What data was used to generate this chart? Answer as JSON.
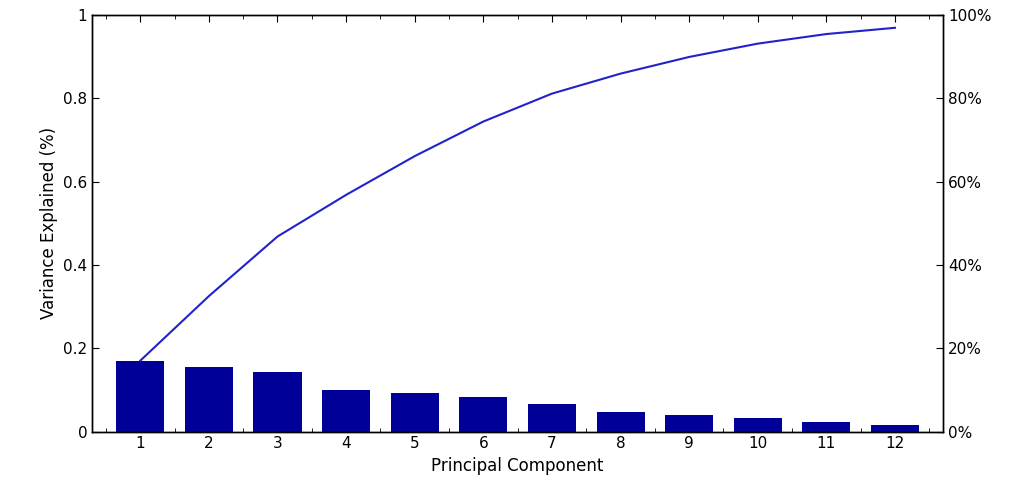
{
  "bar_values": [
    0.17,
    0.155,
    0.143,
    0.1,
    0.093,
    0.083,
    0.067,
    0.048,
    0.04,
    0.032,
    0.023,
    0.015
  ],
  "categories": [
    1,
    2,
    3,
    4,
    5,
    6,
    7,
    8,
    9,
    10,
    11,
    12
  ],
  "bar_color": "#000099",
  "line_color": "#2222CC",
  "xlabel": "Principal Component",
  "ylabel": "Variance Explained (%)",
  "ylim_left": [
    0,
    1
  ],
  "yticks_left": [
    0,
    0.2,
    0.4,
    0.6,
    0.8,
    1.0
  ],
  "yticks_left_labels": [
    "0",
    "0.2",
    "0.4",
    "0.6",
    "0.8",
    "1"
  ],
  "yticks_right_labels": [
    "0%",
    "20%",
    "40%",
    "60%",
    "80%",
    "100%"
  ],
  "background_color": "#ffffff",
  "figsize": [
    10.25,
    4.96
  ]
}
